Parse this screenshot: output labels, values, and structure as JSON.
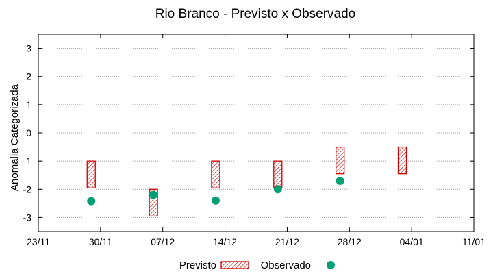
{
  "chart_data": {
    "type": "scatter",
    "title": "Rio Branco - Previsto x Observado",
    "xlabel": "",
    "ylabel": "Anomalia Categorizada",
    "x_ticks": [
      "23/11",
      "30/11",
      "07/12",
      "14/12",
      "21/12",
      "28/12",
      "04/01",
      "11/01"
    ],
    "y_ticks": [
      "-3",
      "-2",
      "-1",
      "0",
      "1",
      "2",
      "3"
    ],
    "ylim": [
      -3.5,
      3.5
    ],
    "xlim_ticks": [
      0,
      7
    ],
    "grid": "horizontal dotted",
    "legend_placement": "bottom",
    "series": [
      {
        "name": "Previsto",
        "kind": "range-box",
        "color": "#cc0000",
        "points": [
          {
            "x_tick_pos": 0.85,
            "low": -1.95,
            "high": -1.0
          },
          {
            "x_tick_pos": 1.85,
            "low": -2.95,
            "high": -2.0
          },
          {
            "x_tick_pos": 2.85,
            "low": -1.95,
            "high": -1.0
          },
          {
            "x_tick_pos": 3.85,
            "low": -1.95,
            "high": -1.0
          },
          {
            "x_tick_pos": 4.85,
            "low": -1.45,
            "high": -0.5
          },
          {
            "x_tick_pos": 5.85,
            "low": -1.45,
            "high": -0.5
          }
        ]
      },
      {
        "name": "Observado",
        "kind": "point",
        "color": "#009e73",
        "points": [
          {
            "x_tick_pos": 0.85,
            "y": -2.42
          },
          {
            "x_tick_pos": 1.85,
            "y": -2.2
          },
          {
            "x_tick_pos": 2.85,
            "y": -2.4
          },
          {
            "x_tick_pos": 3.85,
            "y": -2.0
          },
          {
            "x_tick_pos": 4.85,
            "y": -1.7
          }
        ]
      }
    ]
  }
}
